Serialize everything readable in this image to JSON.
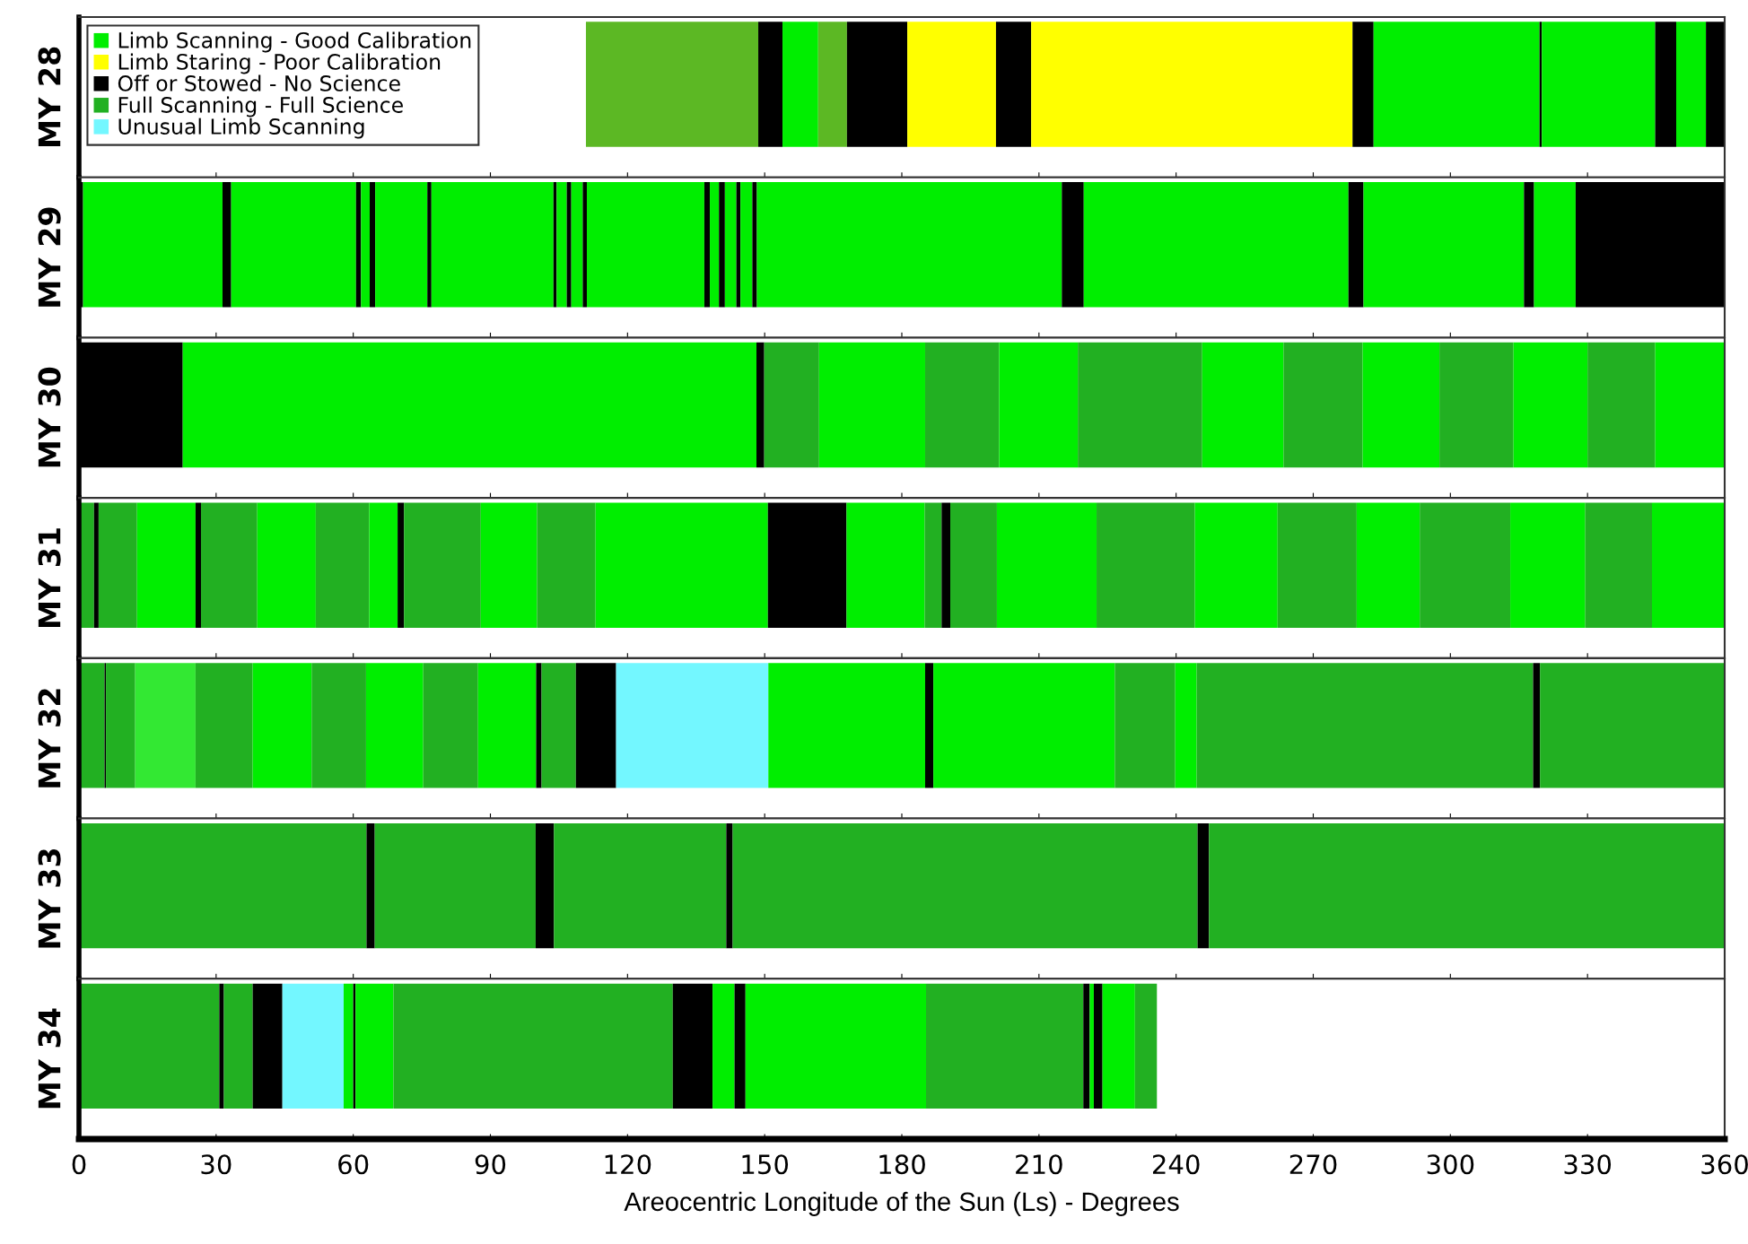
{
  "chart_data": [
    {
      "type": "bar",
      "orientation": "horizontal",
      "categories": [
        "MY 28"
      ],
      "xlim": [
        0,
        360
      ],
      "xticks": [
        0,
        30,
        60,
        90,
        120,
        150,
        180,
        210,
        240,
        270,
        300,
        330,
        360
      ],
      "tick_labels": "y",
      "legend": "top left",
      "series": [
        {
          "color": "#5cb824",
          "base": [
            110.9
          ],
          "values": [
            37.7
          ]
        },
        {
          "color": "#000000",
          "base": [
            148.6
          ],
          "values": [
            5.3
          ]
        },
        {
          "name": "Limb Scanning - Good Calibration",
          "color": "#00ee00",
          "base": [
            153.9
          ],
          "values": [
            7.8
          ]
        },
        {
          "color": "#5cb824",
          "base": [
            161.7
          ],
          "values": [
            6.3
          ]
        },
        {
          "color": "#000000",
          "base": [
            168.0
          ],
          "values": [
            13.2
          ]
        },
        {
          "name": "Limb Staring - Poor Calibration",
          "color": "#ffff00",
          "base": [
            181.2
          ],
          "values": [
            19.4
          ]
        },
        {
          "name": "Off or Stowed - No Science",
          "color": "#000000",
          "base": [
            200.6
          ],
          "values": [
            7.7
          ]
        },
        {
          "color": "#ffff00",
          "base": [
            208.3
          ],
          "values": [
            70.3
          ]
        },
        {
          "color": "#000000",
          "base": [
            278.6
          ],
          "values": [
            4.6
          ]
        },
        {
          "color": "#00ee00",
          "base": [
            283.2
          ],
          "values": [
            36.3
          ]
        },
        {
          "color": "#000000",
          "base": [
            319.5
          ],
          "values": [
            0.5
          ]
        },
        {
          "color": "#00ee00",
          "base": [
            320.0
          ],
          "values": [
            24.8
          ]
        },
        {
          "color": "#000000",
          "base": [
            344.8
          ],
          "values": [
            4.6
          ]
        },
        {
          "color": "#00ee00",
          "base": [
            349.4
          ],
          "values": [
            6.5
          ]
        },
        {
          "color": "#000000",
          "base": [
            355.9
          ],
          "values": [
            4.1
          ]
        }
      ]
    },
    {
      "type": "bar",
      "orientation": "horizontal",
      "stacked": true,
      "categories": [
        "MY 29"
      ],
      "xlim": [
        0,
        360
      ],
      "xticks": [
        0,
        30,
        60,
        90,
        120,
        150,
        180,
        210,
        240,
        270,
        300,
        330,
        360
      ],
      "tick_labels": "y",
      "series": [
        {
          "color": "#000000",
          "values": [
            0.9
          ]
        },
        {
          "color": "#00ee00",
          "values": [
            30.5
          ]
        },
        {
          "color": "#000000",
          "values": [
            1.9
          ]
        },
        {
          "color": "#00ee00",
          "values": [
            27.3
          ]
        },
        {
          "color": "#000000",
          "values": [
            1.1
          ]
        },
        {
          "color": "#00ee00",
          "values": [
            1.9
          ]
        },
        {
          "color": "#000000",
          "values": [
            1.2
          ]
        },
        {
          "color": "#00ee00",
          "values": [
            11.4
          ]
        },
        {
          "color": "#000000",
          "values": [
            0.9
          ]
        },
        {
          "color": "#00ee00",
          "values": [
            26.7
          ]
        },
        {
          "color": "#000000",
          "values": [
            0.7
          ]
        },
        {
          "color": "#00ee00",
          "values": [
            2.2
          ]
        },
        {
          "color": "#000000",
          "values": [
            1.0
          ]
        },
        {
          "color": "#00ee00",
          "values": [
            2.5
          ]
        },
        {
          "color": "#000000",
          "values": [
            0.9
          ]
        },
        {
          "color": "#00ee00",
          "values": [
            25.7
          ]
        },
        {
          "color": "#000000",
          "values": [
            1.2
          ]
        },
        {
          "color": "#00ee00",
          "values": [
            2.0
          ]
        },
        {
          "color": "#000000",
          "values": [
            1.3
          ]
        },
        {
          "color": "#00ee00",
          "values": [
            2.5
          ]
        },
        {
          "color": "#000000",
          "values": [
            0.9
          ]
        },
        {
          "color": "#00ee00",
          "values": [
            2.6
          ]
        },
        {
          "color": "#000000",
          "values": [
            1.0
          ]
        },
        {
          "color": "#00ee00",
          "values": [
            66.7
          ]
        },
        {
          "color": "#000000",
          "values": [
            4.8
          ]
        },
        {
          "color": "#00ee00",
          "values": [
            57.9
          ]
        },
        {
          "color": "#000000",
          "values": [
            3.3
          ]
        },
        {
          "color": "#00ee00",
          "values": [
            35.1
          ]
        },
        {
          "color": "#000000",
          "values": [
            2.2
          ]
        },
        {
          "color": "#00ee00",
          "values": [
            9.1
          ]
        },
        {
          "color": "#000000",
          "values": [
            32.6
          ]
        }
      ]
    },
    {
      "type": "bar",
      "orientation": "horizontal",
      "stacked": true,
      "categories": [
        "MY 30"
      ],
      "xlim": [
        0,
        360
      ],
      "xticks": [
        0,
        30,
        60,
        90,
        120,
        150,
        180,
        210,
        240,
        270,
        300,
        330,
        360
      ],
      "tick_labels": "y",
      "series": [
        {
          "color": "#000000",
          "values": [
            22.7
          ]
        },
        {
          "color": "#00ee00",
          "values": [
            125.5
          ]
        },
        {
          "color": "#000000",
          "values": [
            1.7
          ]
        },
        {
          "name": "Full Scanning - Full Science",
          "color": "#22b022",
          "values": [
            12.0
          ]
        },
        {
          "color": "#00ee00",
          "values": [
            23.2
          ]
        },
        {
          "color": "#22b022",
          "values": [
            16.2
          ]
        },
        {
          "color": "#00ee00",
          "values": [
            17.2
          ]
        },
        {
          "color": "#22b022",
          "values": [
            27.2
          ]
        },
        {
          "color": "#00ee00",
          "values": [
            17.8
          ]
        },
        {
          "color": "#22b022",
          "values": [
            17.3
          ]
        },
        {
          "color": "#00ee00",
          "values": [
            16.8
          ]
        },
        {
          "color": "#22b022",
          "values": [
            16.2
          ]
        },
        {
          "color": "#00ee00",
          "values": [
            16.2
          ]
        },
        {
          "color": "#22b022",
          "values": [
            14.8
          ]
        },
        {
          "color": "#00ee00",
          "values": [
            15.2
          ]
        }
      ]
    },
    {
      "type": "bar",
      "orientation": "horizontal",
      "stacked": true,
      "categories": [
        "MY 31"
      ],
      "xlim": [
        0,
        360
      ],
      "xticks": [
        0,
        30,
        60,
        90,
        120,
        150,
        180,
        210,
        240,
        270,
        300,
        330,
        360
      ],
      "tick_labels": "y",
      "series": [
        {
          "color": "#22b022",
          "values": [
            3.3
          ]
        },
        {
          "color": "#000000",
          "values": [
            1.0
          ]
        },
        {
          "color": "#22b022",
          "values": [
            8.4
          ]
        },
        {
          "color": "#00ee00",
          "values": [
            12.8
          ]
        },
        {
          "color": "#000000",
          "values": [
            1.2
          ]
        },
        {
          "color": "#22b022",
          "values": [
            12.3
          ]
        },
        {
          "color": "#00ee00",
          "values": [
            12.8
          ]
        },
        {
          "color": "#22b022",
          "values": [
            11.7
          ]
        },
        {
          "color": "#00ee00",
          "values": [
            6.2
          ]
        },
        {
          "color": "#000000",
          "values": [
            1.4
          ]
        },
        {
          "color": "#22b022",
          "values": [
            16.8
          ]
        },
        {
          "color": "#00ee00",
          "values": [
            12.3
          ]
        },
        {
          "color": "#22b022",
          "values": [
            12.8
          ]
        },
        {
          "color": "#00ee00",
          "values": [
            37.7
          ]
        },
        {
          "color": "#000000",
          "values": [
            17.2
          ]
        },
        {
          "color": "#00ee00",
          "values": [
            17.1
          ]
        },
        {
          "color": "#22b022",
          "values": [
            3.7
          ]
        },
        {
          "color": "#000000",
          "values": [
            1.9
          ]
        },
        {
          "color": "#22b022",
          "values": [
            10.2
          ]
        },
        {
          "color": "#00ee00",
          "values": [
            21.8
          ]
        },
        {
          "color": "#22b022",
          "values": [
            21.5
          ]
        },
        {
          "color": "#00ee00",
          "values": [
            18.1
          ]
        },
        {
          "color": "#22b022",
          "values": [
            17.3
          ]
        },
        {
          "color": "#00ee00",
          "values": [
            13.8
          ]
        },
        {
          "color": "#22b022",
          "values": [
            19.8
          ]
        },
        {
          "color": "#00ee00",
          "values": [
            16.4
          ]
        },
        {
          "color": "#22b022",
          "values": [
            14.6
          ]
        },
        {
          "color": "#00ee00",
          "values": [
            15.9
          ]
        }
      ]
    },
    {
      "type": "bar",
      "orientation": "horizontal",
      "stacked": true,
      "categories": [
        "MY 32"
      ],
      "xlim": [
        0,
        360
      ],
      "xticks": [
        0,
        30,
        60,
        90,
        120,
        150,
        180,
        210,
        240,
        270,
        300,
        330,
        360
      ],
      "tick_labels": "y",
      "series": [
        {
          "color": "#22b022",
          "values": [
            5.6
          ]
        },
        {
          "color": "#000000",
          "values": [
            0.3
          ]
        },
        {
          "color": "#22b022",
          "values": [
            6.4
          ]
        },
        {
          "color": "#33e833",
          "values": [
            13.2
          ]
        },
        {
          "color": "#22b022",
          "values": [
            12.5
          ]
        },
        {
          "color": "#00ee00",
          "values": [
            12.9
          ]
        },
        {
          "color": "#22b022",
          "values": [
            11.9
          ]
        },
        {
          "color": "#00ee00",
          "values": [
            12.5
          ]
        },
        {
          "color": "#22b022",
          "values": [
            12.0
          ]
        },
        {
          "color": "#00ee00",
          "values": [
            12.7
          ]
        },
        {
          "color": "#000000",
          "values": [
            1.2
          ]
        },
        {
          "color": "#22b022",
          "values": [
            7.5
          ]
        },
        {
          "color": "#000000",
          "values": [
            8.8
          ]
        },
        {
          "name": "Unusual Limb Scanning",
          "color": "#73f7ff",
          "values": [
            33.3
          ]
        },
        {
          "color": "#00ee00",
          "values": [
            34.3
          ]
        },
        {
          "color": "#000000",
          "values": [
            1.8
          ]
        },
        {
          "color": "#00ee00",
          "values": [
            39.7
          ]
        },
        {
          "color": "#22b022",
          "values": [
            13.2
          ]
        },
        {
          "color": "#00ee00",
          "values": [
            4.7
          ]
        },
        {
          "color": "#22b022",
          "values": [
            73.6
          ]
        },
        {
          "color": "#000000",
          "values": [
            1.5
          ]
        },
        {
          "color": "#22b022",
          "values": [
            40.4
          ]
        }
      ]
    },
    {
      "type": "bar",
      "orientation": "horizontal",
      "stacked": true,
      "categories": [
        "MY 33"
      ],
      "xlim": [
        0,
        360
      ],
      "xticks": [
        0,
        30,
        60,
        90,
        120,
        150,
        180,
        210,
        240,
        270,
        300,
        330,
        360
      ],
      "tick_labels": "y",
      "series": [
        {
          "color": "#22b022",
          "values": [
            62.9
          ]
        },
        {
          "color": "#000000",
          "values": [
            1.8
          ]
        },
        {
          "color": "#22b022",
          "values": [
            35.2
          ]
        },
        {
          "color": "#000000",
          "values": [
            4.0
          ]
        },
        {
          "color": "#22b022",
          "values": [
            37.7
          ]
        },
        {
          "color": "#000000",
          "values": [
            1.4
          ]
        },
        {
          "color": "#22b022",
          "values": [
            101.7
          ]
        },
        {
          "color": "#000000",
          "values": [
            2.5
          ]
        },
        {
          "color": "#22b022",
          "values": [
            112.8
          ]
        }
      ]
    },
    {
      "type": "bar",
      "orientation": "horizontal",
      "stacked": true,
      "categories": [
        "MY 34"
      ],
      "xlim": [
        0,
        360
      ],
      "xticks": [
        0,
        30,
        60,
        90,
        120,
        150,
        180,
        210,
        240,
        270,
        300,
        330,
        360
      ],
      "xlabel": "Areocentric Longitude of the Sun (Ls) - Degrees",
      "series": [
        {
          "color": "#22b022",
          "values": [
            30.7
          ]
        },
        {
          "color": "#000000",
          "values": [
            1.0
          ]
        },
        {
          "color": "#22b022",
          "values": [
            6.3
          ]
        },
        {
          "color": "#000000",
          "values": [
            6.5
          ]
        },
        {
          "color": "#73f7ff",
          "values": [
            13.4
          ]
        },
        {
          "color": "#00ee00",
          "values": [
            2.1
          ]
        },
        {
          "color": "#000000",
          "values": [
            0.5
          ]
        },
        {
          "color": "#00ee00",
          "values": [
            8.3
          ]
        },
        {
          "color": "#22b022",
          "values": [
            61.1
          ]
        },
        {
          "color": "#000000",
          "values": [
            8.7
          ]
        },
        {
          "color": "#00ee00",
          "values": [
            4.8
          ]
        },
        {
          "color": "#000000",
          "values": [
            2.4
          ]
        },
        {
          "color": "#00ee00",
          "values": [
            39.5
          ]
        },
        {
          "color": "#22b022",
          "values": [
            34.4
          ]
        },
        {
          "color": "#000000",
          "values": [
            1.4
          ]
        },
        {
          "color": "#00ee00",
          "values": [
            0.9
          ]
        },
        {
          "color": "#000000",
          "values": [
            1.9
          ]
        },
        {
          "color": "#00ee00",
          "values": [
            7.1
          ]
        },
        {
          "color": "#22b022",
          "values": [
            4.8
          ]
        }
      ]
    }
  ]
}
